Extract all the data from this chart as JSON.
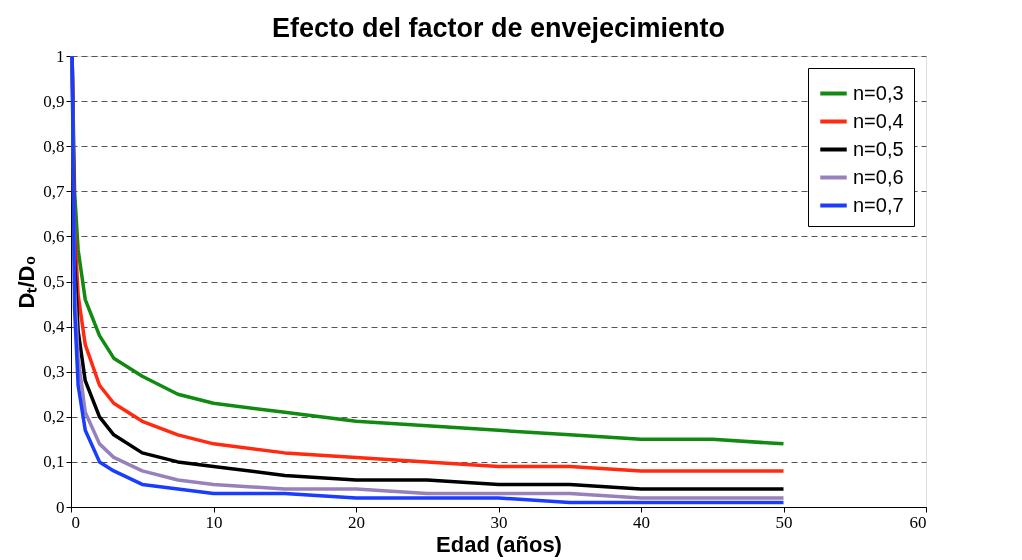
{
  "chart_data": {
    "type": "line",
    "title": "Efecto del factor de envejecimiento",
    "xlabel": "Edad (años)",
    "ylabel": "Dₜ/D₀",
    "x": [
      0.08,
      0.25,
      0.5,
      1,
      2,
      3,
      5,
      7.5,
      10,
      15,
      20,
      25,
      30,
      35,
      40,
      45,
      50
    ],
    "series": [
      {
        "name": "n=0,3",
        "color": "#108a10",
        "values": [
          1,
          0.7,
          0.57,
          0.46,
          0.38,
          0.33,
          0.29,
          0.25,
          0.23,
          0.21,
          0.19,
          0.18,
          0.17,
          0.16,
          0.15,
          0.15,
          0.14
        ]
      },
      {
        "name": "n=0,4",
        "color": "#ff2a10",
        "values": [
          1,
          0.62,
          0.47,
          0.36,
          0.27,
          0.23,
          0.19,
          0.16,
          0.14,
          0.12,
          0.11,
          0.1,
          0.09,
          0.09,
          0.08,
          0.08,
          0.08
        ]
      },
      {
        "name": "n=0,5",
        "color": "#000000",
        "values": [
          1,
          0.55,
          0.39,
          0.28,
          0.2,
          0.16,
          0.12,
          0.1,
          0.09,
          0.07,
          0.06,
          0.06,
          0.05,
          0.05,
          0.04,
          0.04,
          0.04
        ]
      },
      {
        "name": "n=0,6",
        "color": "#9880bc",
        "values": [
          1,
          0.49,
          0.33,
          0.21,
          0.14,
          0.11,
          0.08,
          0.06,
          0.05,
          0.04,
          0.04,
          0.03,
          0.03,
          0.03,
          0.02,
          0.02,
          0.02
        ]
      },
      {
        "name": "n=0,7",
        "color": "#1a3cff",
        "values": [
          1,
          0.44,
          0.27,
          0.17,
          0.1,
          0.08,
          0.05,
          0.04,
          0.03,
          0.03,
          0.02,
          0.02,
          0.02,
          0.01,
          0.01,
          0.01,
          0.01
        ]
      }
    ],
    "xlim": [
      0,
      60
    ],
    "xticks": [
      0,
      10,
      20,
      30,
      40,
      50,
      60
    ],
    "ylim": [
      0,
      1
    ],
    "yticks": [
      0,
      {
        "value": 0.1,
        "label": "0,1"
      },
      {
        "value": 0.2,
        "label": "0,2"
      },
      {
        "value": 0.3,
        "label": "0,3"
      },
      {
        "value": 0.4,
        "label": "0,4"
      },
      {
        "value": 0.5,
        "label": "0,5"
      },
      {
        "value": 0.6,
        "label": "0,6"
      },
      {
        "value": 0.7,
        "label": "0,7"
      },
      {
        "value": 0.8,
        "label": "0,8"
      },
      {
        "value": 0.9,
        "label": "0,9"
      },
      1
    ],
    "grid": "y",
    "legend": "top right",
    "line_style": "solid"
  }
}
